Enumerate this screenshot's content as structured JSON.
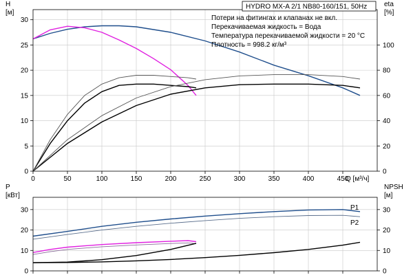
{
  "title": "HYDRO MX-A 2/1 NB80-160/151, 50Hz",
  "info_lines": [
    "Потери на фитингах и клапанах не вкл.",
    "Перекачиваемая жидкость = Вода",
    "Температура перекачиваемой жидкости = 20 °C",
    "Плотность = 998.2 кг/м³"
  ],
  "chart_data": [
    {
      "type": "line",
      "xlabel": "Q [м³/ч]",
      "ylabel": "H\n[м]",
      "ylabel_right": "eta\n[%]",
      "xlim": [
        0,
        500
      ],
      "ylim": [
        0,
        32
      ],
      "ylim_right": [
        0,
        128
      ],
      "x_ticks": [
        0,
        50,
        100,
        150,
        200,
        250,
        300,
        350,
        400,
        450
      ],
      "y_ticks": [
        0,
        5,
        10,
        15,
        20,
        25,
        30
      ],
      "y_ticks_right": [
        0,
        20,
        40,
        60,
        80,
        100
      ],
      "grid": true,
      "series": [
        {
          "color": "#1f4e8c",
          "axis": "left",
          "x": [
            0,
            25,
            50,
            75,
            100,
            125,
            150,
            200,
            250,
            300,
            350,
            400,
            450,
            475
          ],
          "y": [
            26.2,
            27.3,
            28.1,
            28.6,
            28.8,
            28.8,
            28.6,
            27.5,
            25.8,
            23.6,
            21.0,
            18.9,
            16.5,
            15.0
          ]
        },
        {
          "color": "#e020e0",
          "axis": "left",
          "x": [
            0,
            25,
            50,
            75,
            100,
            125,
            150,
            175,
            200,
            225,
            237
          ],
          "y": [
            26.2,
            28.0,
            28.7,
            28.4,
            27.5,
            26.0,
            24.3,
            22.3,
            20.1,
            17.0,
            15.0
          ]
        },
        {
          "color": "#000000",
          "axis": "right",
          "x": [
            0,
            25,
            50,
            75,
            100,
            125,
            150,
            175,
            200,
            225,
            237
          ],
          "y": [
            0,
            22,
            40,
            54,
            63,
            68,
            69,
            69,
            68,
            67,
            66
          ]
        },
        {
          "color": "#555555",
          "axis": "right",
          "x": [
            0,
            25,
            50,
            75,
            100,
            125,
            150,
            175,
            200,
            225,
            237
          ],
          "y": [
            0,
            25,
            45,
            60,
            69,
            74,
            76,
            76,
            75,
            74,
            73
          ]
        },
        {
          "color": "#000000",
          "axis": "right",
          "x": [
            0,
            50,
            100,
            150,
            200,
            250,
            300,
            350,
            400,
            450,
            475
          ],
          "y": [
            0,
            22,
            39,
            52,
            61,
            66,
            68.5,
            69,
            69,
            68,
            66
          ]
        },
        {
          "color": "#555555",
          "axis": "right",
          "x": [
            0,
            50,
            100,
            150,
            200,
            250,
            300,
            350,
            400,
            450,
            475
          ],
          "y": [
            0,
            25,
            44,
            58,
            67,
            72.5,
            75.5,
            76.5,
            76.5,
            75,
            73
          ]
        }
      ]
    },
    {
      "type": "line",
      "xlabel": "",
      "ylabel": "P\n[кВт]",
      "ylabel_right": "NPSH\n[м]",
      "xlim": [
        0,
        500
      ],
      "ylim": [
        0,
        36
      ],
      "ylim_right": [
        0,
        36
      ],
      "y_ticks": [
        0,
        10,
        20,
        30
      ],
      "y_ticks_right": [
        0,
        10,
        20,
        30
      ],
      "grid": true,
      "series": [
        {
          "name": "P1",
          "color": "#1f4e8c",
          "axis": "left",
          "x": [
            0,
            50,
            100,
            150,
            200,
            250,
            300,
            350,
            400,
            450,
            475
          ],
          "y": [
            17,
            19.3,
            21.8,
            23.8,
            25.4,
            26.8,
            28.0,
            29.0,
            29.8,
            30.0,
            29.0
          ]
        },
        {
          "name": "P2",
          "color": "#5a6e8c",
          "axis": "left",
          "x": [
            0,
            50,
            100,
            150,
            200,
            250,
            300,
            350,
            400,
            450,
            475
          ],
          "y": [
            15.5,
            17.8,
            20.0,
            21.8,
            23.3,
            24.6,
            25.7,
            26.5,
            27.1,
            27.2,
            26.5
          ]
        },
        {
          "color": "#e020e0",
          "axis": "left",
          "x": [
            0,
            25,
            50,
            100,
            150,
            200,
            225,
            237
          ],
          "y": [
            9,
            10.5,
            11.6,
            12.9,
            13.8,
            14.5,
            14.8,
            14.3
          ]
        },
        {
          "color": "#8a6a9a",
          "axis": "left",
          "x": [
            0,
            25,
            50,
            100,
            150,
            200,
            225,
            237
          ],
          "y": [
            8,
            9.4,
            10.5,
            11.8,
            12.7,
            13.4,
            13.7,
            13.3
          ]
        },
        {
          "color": "#000000",
          "axis": "right",
          "x": [
            0,
            50,
            100,
            150,
            200,
            237
          ],
          "y": [
            4,
            4.3,
            5.5,
            7.5,
            10.5,
            13.5
          ]
        },
        {
          "color": "#000000",
          "axis": "right",
          "x": [
            0,
            50,
            100,
            150,
            200,
            250,
            300,
            350,
            400,
            450,
            475
          ],
          "y": [
            4,
            4.1,
            4.4,
            4.9,
            5.6,
            6.5,
            7.6,
            8.9,
            10.5,
            12.6,
            14.0
          ]
        }
      ]
    }
  ]
}
